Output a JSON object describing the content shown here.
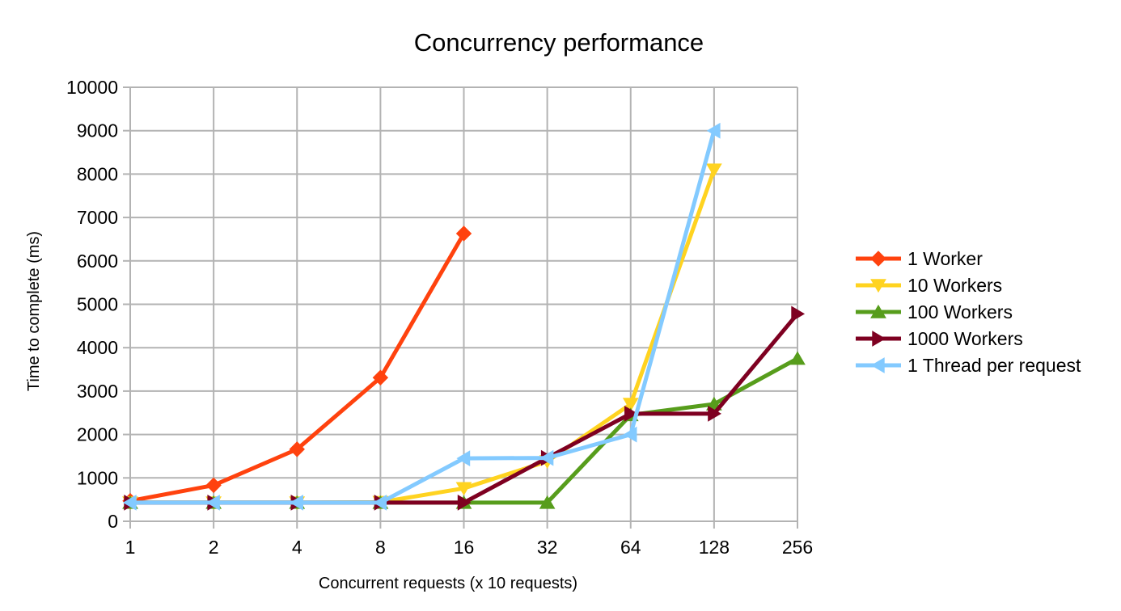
{
  "chart_data": {
    "type": "line",
    "title": "Concurrency performance",
    "xlabel": "Concurrent requests (x 10 requests)",
    "ylabel": "Time to complete (ms)",
    "categories": [
      "1",
      "2",
      "4",
      "8",
      "16",
      "32",
      "64",
      "128",
      "256"
    ],
    "ylim": [
      0,
      10000
    ],
    "yticks": [
      0,
      1000,
      2000,
      3000,
      4000,
      5000,
      6000,
      7000,
      8000,
      9000,
      10000
    ],
    "grid": true,
    "legend_position": "right",
    "series": [
      {
        "name": "1 Worker",
        "color": "#ff420e",
        "marker": "diamond",
        "values": [
          470,
          830,
          1660,
          3310,
          6630,
          null,
          null,
          null,
          null
        ]
      },
      {
        "name": "10 Workers",
        "color": "#ffd320",
        "marker": "triangle-down",
        "values": [
          430,
          430,
          430,
          440,
          760,
          1380,
          2700,
          8100,
          null
        ]
      },
      {
        "name": "100 Workers",
        "color": "#579d1c",
        "marker": "triangle-up",
        "values": [
          430,
          430,
          430,
          430,
          430,
          430,
          2450,
          2700,
          3750
        ]
      },
      {
        "name": "1000 Workers",
        "color": "#7e0021",
        "marker": "triangle-right",
        "values": [
          430,
          430,
          430,
          430,
          430,
          1460,
          2480,
          2480,
          4780
        ]
      },
      {
        "name": "1 Thread per request",
        "color": "#83caff",
        "marker": "triangle-left",
        "values": [
          430,
          430,
          430,
          430,
          1450,
          1460,
          2000,
          9000,
          null
        ]
      }
    ]
  }
}
